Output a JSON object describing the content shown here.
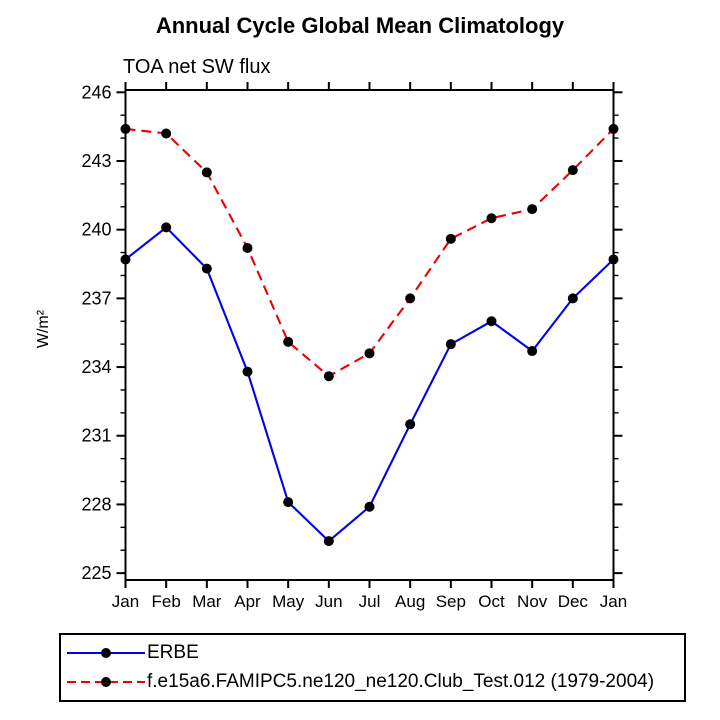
{
  "title": "Annual Cycle Global Mean Climatology",
  "subtitle": "TOA net SW flux",
  "ylabel": "W/m²",
  "colors": {
    "erbe_line": "#0000ee",
    "model_line": "#ee0000",
    "marker": "#000000",
    "axis": "#000000",
    "background": "#ffffff"
  },
  "legend": {
    "items": [
      {
        "label": "ERBE",
        "line": "solid",
        "color": "#0000ee"
      },
      {
        "label": "f.e15a6.FAMIPC5.ne120_ne120.Club_Test.012 (1979-2004)",
        "line": "dashed",
        "color": "#ee0000"
      }
    ]
  },
  "chart_data": {
    "type": "line",
    "title": "Annual Cycle Global Mean Climatology",
    "subtitle": "TOA net SW flux",
    "ylabel": "W/m²",
    "categories": [
      "Jan",
      "Feb",
      "Mar",
      "Apr",
      "May",
      "Jun",
      "Jul",
      "Aug",
      "Sep",
      "Oct",
      "Nov",
      "Dec",
      "Jan"
    ],
    "series": [
      {
        "name": "ERBE",
        "color": "#0000ee",
        "line": "solid",
        "marker": "circle",
        "values": [
          238.7,
          240.1,
          238.3,
          233.8,
          228.1,
          226.4,
          227.9,
          231.5,
          235.0,
          236.0,
          234.7,
          237.0,
          238.7
        ]
      },
      {
        "name": "f.e15a6.FAMIPC5.ne120_ne120.Club_Test.012 (1979-2004)",
        "color": "#ee0000",
        "line": "dashed",
        "marker": "circle",
        "values": [
          244.4,
          244.2,
          242.5,
          239.2,
          235.1,
          233.6,
          234.6,
          237.0,
          239.6,
          240.5,
          240.9,
          242.6,
          244.4
        ]
      }
    ],
    "yticks_major": [
      225,
      228,
      231,
      234,
      237,
      240,
      243,
      246
    ],
    "ytick_minor_step": 1,
    "ylim": [
      224.7,
      246.1
    ],
    "grid": false,
    "legend_position": "bottom"
  }
}
